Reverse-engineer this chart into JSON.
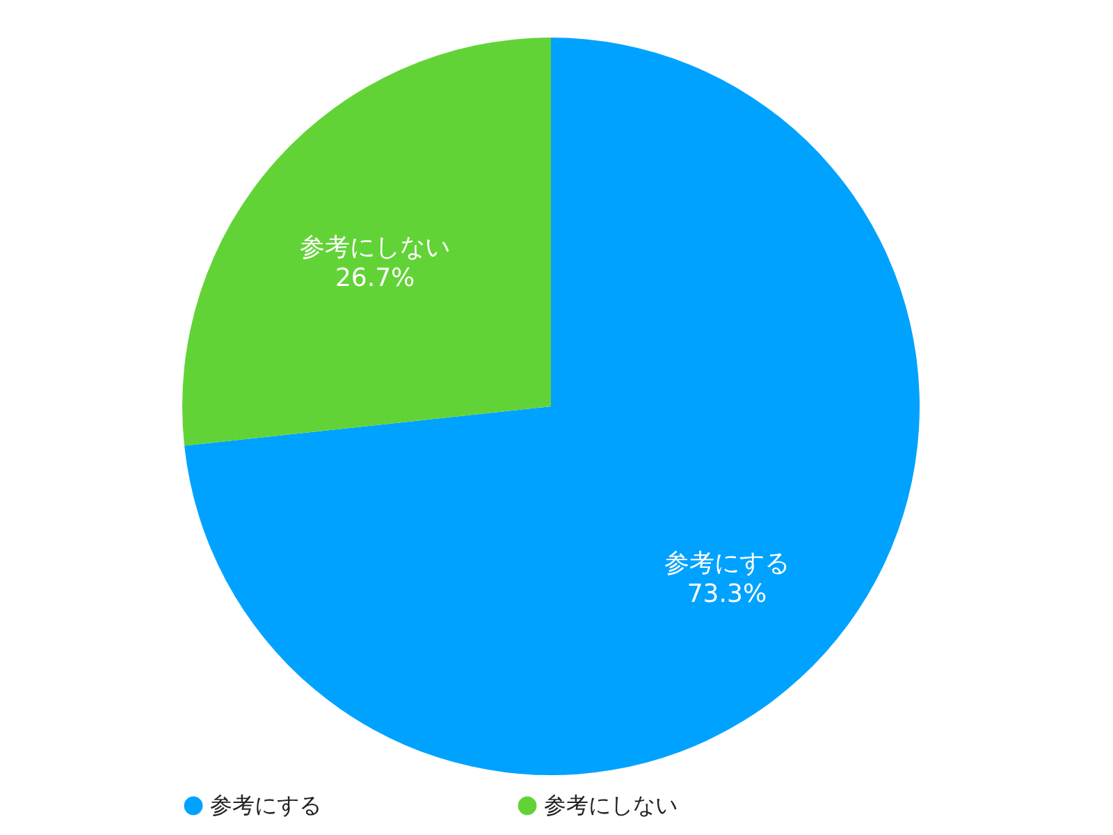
{
  "chart_data": {
    "type": "pie",
    "categories": [
      "参考にする",
      "参考にしない"
    ],
    "values": [
      73.3,
      26.7
    ],
    "colors": [
      "#00a2ff",
      "#62d336"
    ],
    "value_labels": [
      "73.3%",
      "26.7%"
    ],
    "legend": "bottom"
  }
}
